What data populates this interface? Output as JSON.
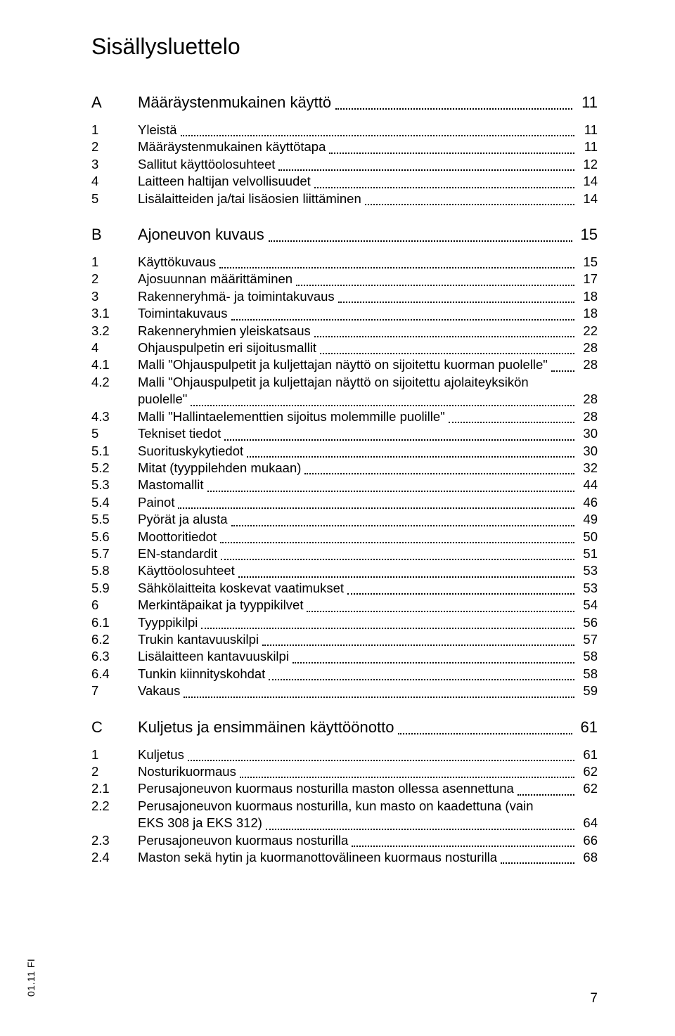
{
  "heading": "Sisällysluettelo",
  "footer_marker": "01.11 FI",
  "footer_page": "7",
  "sections": [
    {
      "letter": "A",
      "title": "Määräystenmukainen käyttö",
      "page": "11",
      "entries": [
        {
          "num": "1",
          "title": "Yleistä",
          "page": "11"
        },
        {
          "num": "2",
          "title": "Määräystenmukainen käyttötapa",
          "page": "11"
        },
        {
          "num": "3",
          "title": "Sallitut käyttöolosuhteet",
          "page": "12"
        },
        {
          "num": "4",
          "title": "Laitteen haltijan velvollisuudet",
          "page": "14"
        },
        {
          "num": "5",
          "title": "Lisälaitteiden ja/tai lisäosien liittäminen",
          "page": "14"
        }
      ]
    },
    {
      "letter": "B",
      "title": "Ajoneuvon kuvaus",
      "page": "15",
      "entries": [
        {
          "num": "1",
          "title": "Käyttökuvaus",
          "page": "15"
        },
        {
          "num": "2",
          "title": "Ajosuunnan määrittäminen",
          "page": "17"
        },
        {
          "num": "3",
          "title": "Rakenneryhmä- ja toimintakuvaus",
          "page": "18"
        },
        {
          "num": "3.1",
          "title": "Toimintakuvaus",
          "page": "18"
        },
        {
          "num": "3.2",
          "title": "Rakenneryhmien yleiskatsaus",
          "page": "22"
        },
        {
          "num": "4",
          "title": "Ohjauspulpetin eri sijoitusmallit",
          "page": "28"
        },
        {
          "num": "4.1",
          "title": "Malli \"Ohjauspulpetit ja kuljettajan näyttö on sijoitettu kuorman puolelle\"",
          "page": "28"
        },
        {
          "num": "4.2",
          "title1": "Malli \"Ohjauspulpetit ja kuljettajan näyttö on sijoitettu ajolaiteyksikön",
          "title2": "puolelle\"",
          "page": "28",
          "wrap": true
        },
        {
          "num": "4.3",
          "title": "Malli \"Hallintaelementtien sijoitus molemmille puolille\"",
          "page": "28"
        },
        {
          "num": "5",
          "title": "Tekniset tiedot",
          "page": "30"
        },
        {
          "num": "5.1",
          "title": "Suorituskykytiedot",
          "page": "30"
        },
        {
          "num": "5.2",
          "title": "Mitat (tyyppilehden mukaan)",
          "page": "32"
        },
        {
          "num": "5.3",
          "title": "Mastomallit",
          "page": "44"
        },
        {
          "num": "5.4",
          "title": "Painot",
          "page": "46"
        },
        {
          "num": "5.5",
          "title": "Pyörät ja alusta",
          "page": "49"
        },
        {
          "num": "5.6",
          "title": "Moottoritiedot",
          "page": "50"
        },
        {
          "num": "5.7",
          "title": "EN-standardit",
          "page": "51"
        },
        {
          "num": "5.8",
          "title": "Käyttöolosuhteet",
          "page": "53"
        },
        {
          "num": "5.9",
          "title": "Sähkölaitteita koskevat vaatimukset",
          "page": "53"
        },
        {
          "num": "6",
          "title": "Merkintäpaikat ja tyyppikilvet",
          "page": "54"
        },
        {
          "num": "6.1",
          "title": "Tyyppikilpi",
          "page": "56"
        },
        {
          "num": "6.2",
          "title": "Trukin kantavuuskilpi",
          "page": "57"
        },
        {
          "num": "6.3",
          "title": "Lisälaitteen kantavuuskilpi",
          "page": "58"
        },
        {
          "num": "6.4",
          "title": "Tunkin kiinnityskohdat",
          "page": "58"
        },
        {
          "num": "7",
          "title": "Vakaus",
          "page": "59"
        }
      ]
    },
    {
      "letter": "C",
      "title": "Kuljetus ja ensimmäinen käyttöönotto",
      "page": "61",
      "entries": [
        {
          "num": "1",
          "title": "Kuljetus",
          "page": "61"
        },
        {
          "num": "2",
          "title": "Nosturikuormaus",
          "page": "62"
        },
        {
          "num": "2.1",
          "title": "Perusajoneuvon kuormaus nosturilla maston ollessa asennettuna",
          "page": "62"
        },
        {
          "num": "2.2",
          "title1": "Perusajoneuvon kuormaus nosturilla, kun masto on kaadettuna (vain",
          "title2": "EKS 308 ja EKS 312)",
          "page": "64",
          "wrap": true
        },
        {
          "num": "2.3",
          "title": "Perusajoneuvon kuormaus nosturilla",
          "page": "66"
        },
        {
          "num": "2.4",
          "title": "Maston sekä hytin ja kuormanottovälineen kuormaus nosturilla",
          "page": "68"
        }
      ]
    }
  ]
}
